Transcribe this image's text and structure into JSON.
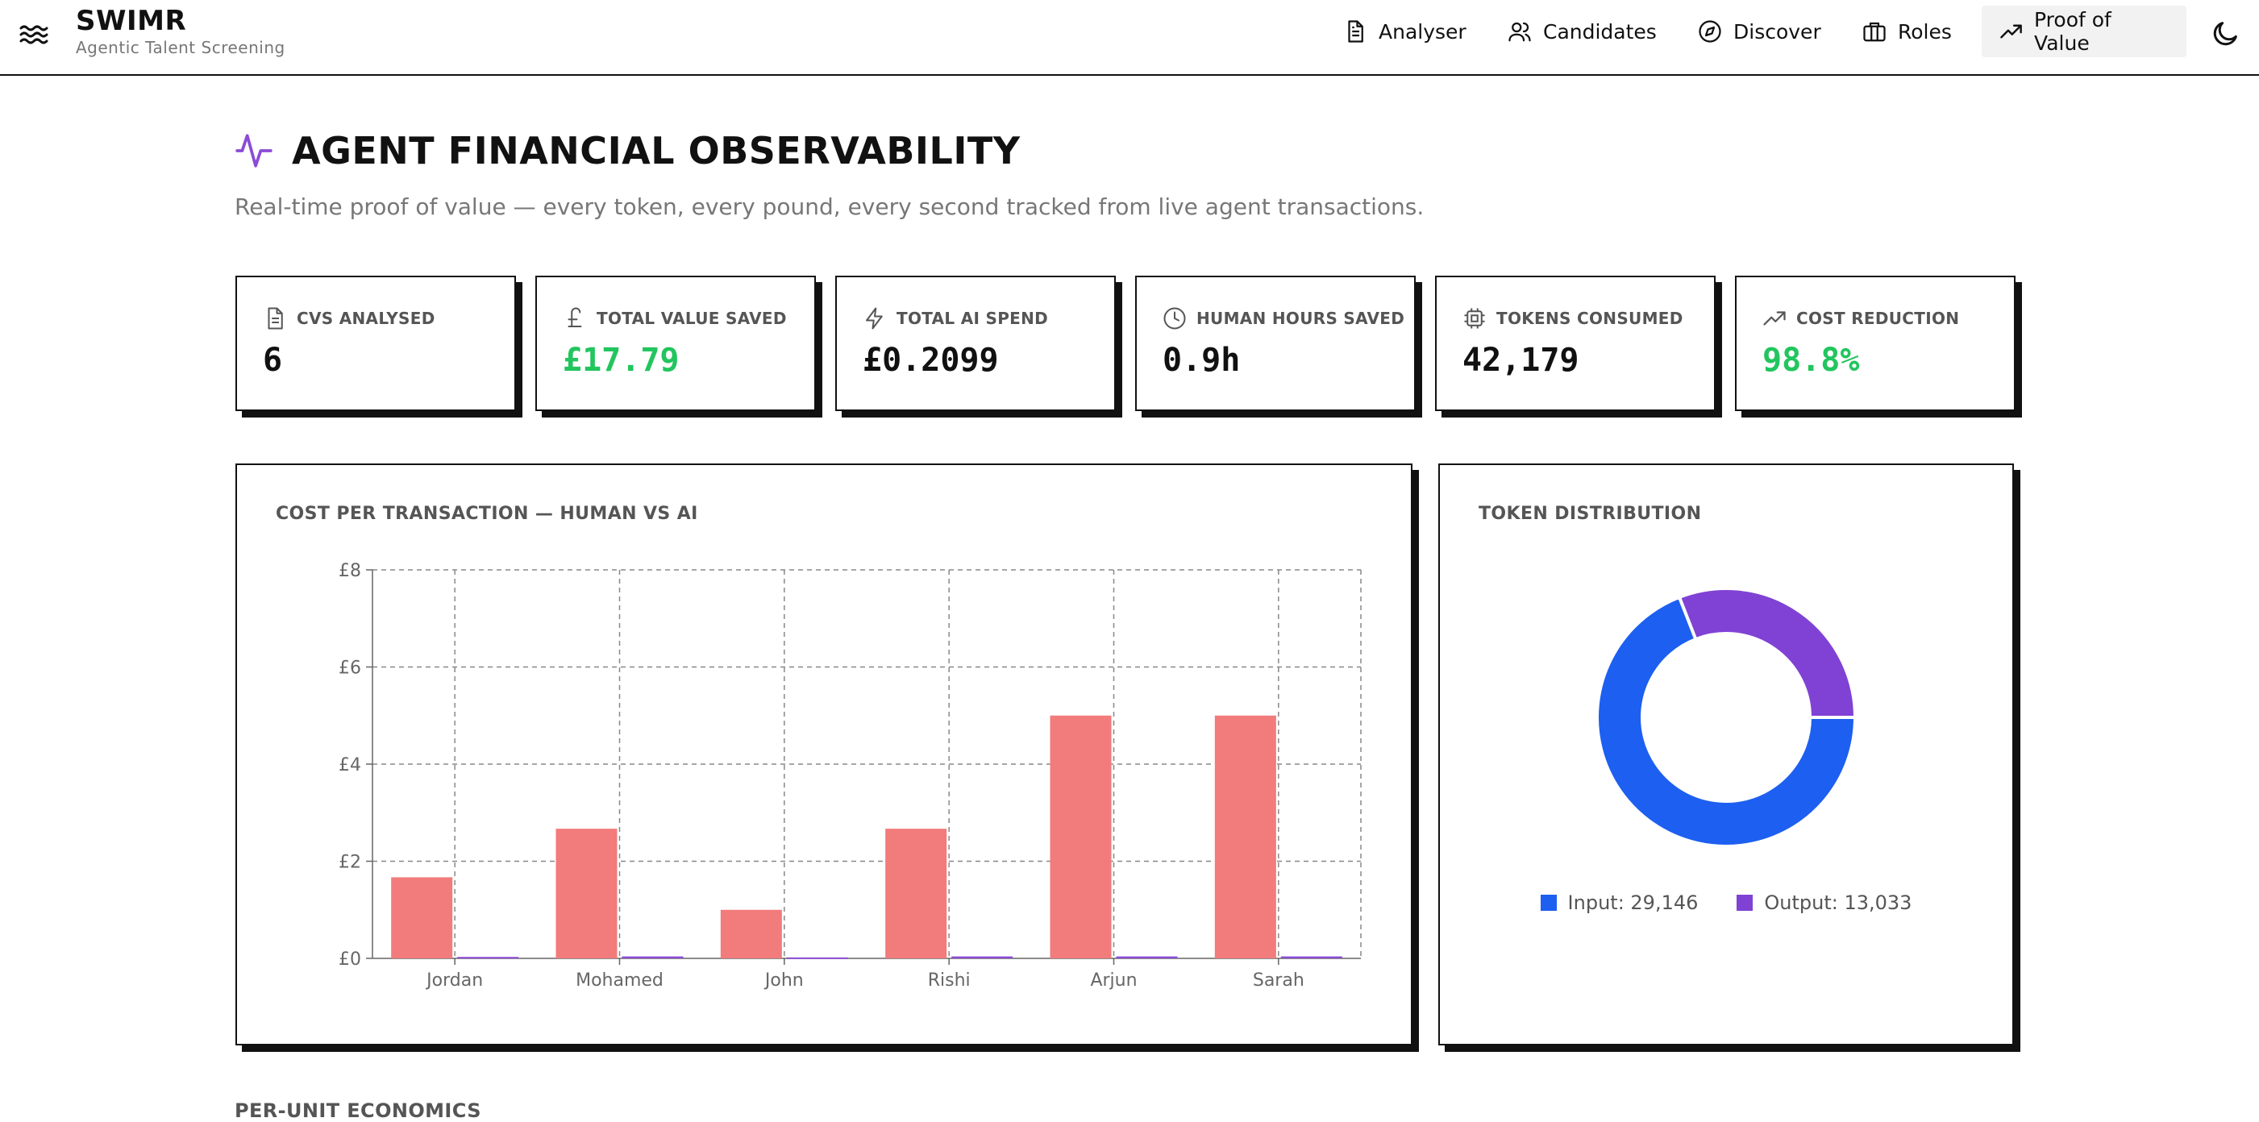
{
  "app": {
    "title": "SWIMR",
    "subtitle": "Agentic Talent Screening"
  },
  "nav": {
    "items": [
      {
        "label": "Analyser",
        "icon": "document-icon"
      },
      {
        "label": "Candidates",
        "icon": "users-icon"
      },
      {
        "label": "Discover",
        "icon": "compass-icon"
      },
      {
        "label": "Roles",
        "icon": "briefcase-icon"
      },
      {
        "label": "Proof of Value",
        "icon": "trending-up-icon",
        "active": true
      }
    ],
    "theme_toggle_icon": "moon-icon"
  },
  "page": {
    "title": "AGENT FINANCIAL OBSERVABILITY",
    "title_icon": "activity-icon",
    "subtitle": "Real-time proof of value — every token, every pound, every second tracked from live agent transactions."
  },
  "stats": [
    {
      "label": "CVS ANALYSED",
      "value": "6",
      "icon": "document-icon",
      "color": "#111111"
    },
    {
      "label": "TOTAL VALUE SAVED",
      "value": "£17.79",
      "icon": "pound-icon",
      "color": "#22c55e"
    },
    {
      "label": "TOTAL AI SPEND",
      "value": "£0.2099",
      "icon": "lightning-icon",
      "color": "#111111"
    },
    {
      "label": "HUMAN HOURS SAVED",
      "value": "0.9h",
      "icon": "clock-icon",
      "color": "#111111"
    },
    {
      "label": "TOKENS CONSUMED",
      "value": "42,179",
      "icon": "chip-icon",
      "color": "#111111"
    },
    {
      "label": "COST REDUCTION",
      "value": "98.8%",
      "icon": "trending-up-icon",
      "color": "#22c55e"
    }
  ],
  "panels": {
    "cost_title": "COST PER TRANSACTION — HUMAN VS AI",
    "token_title": "TOKEN DISTRIBUTION",
    "next_section": "PER-UNIT ECONOMICS"
  },
  "chart_data": [
    {
      "type": "bar",
      "title": "COST PER TRANSACTION — HUMAN VS AI",
      "categories": [
        "Jordan",
        "Mohamed",
        "John",
        "Rishi",
        "Arjun",
        "Sarah"
      ],
      "series": [
        {
          "color": "#f27b7b",
          "values": [
            1.67,
            2.67,
            1.0,
            2.67,
            5.0,
            5.0
          ]
        },
        {
          "color": "#8b4bd6",
          "values": [
            0.03,
            0.04,
            0.02,
            0.04,
            0.04,
            0.04
          ]
        }
      ],
      "ylim": [
        0,
        8
      ],
      "yticks": [
        "£0",
        "£2",
        "£4",
        "£6",
        "£8"
      ],
      "grid": true
    },
    {
      "type": "pie",
      "title": "TOKEN DISTRIBUTION",
      "slices": [
        {
          "name": "Input",
          "value": 29146,
          "color": "#1d5ff0",
          "legend": "Input: 29,146"
        },
        {
          "name": "Output",
          "value": 13033,
          "color": "#8042d4",
          "legend": "Output: 13,033"
        }
      ],
      "legend_placement": "bottom"
    }
  ],
  "colors": {
    "accent": "#8b4bd6",
    "positive": "#22c55e",
    "human_bar": "#f27b7b",
    "ai_bar": "#8b4bd6",
    "input": "#1d5ff0",
    "output": "#8042d4"
  }
}
